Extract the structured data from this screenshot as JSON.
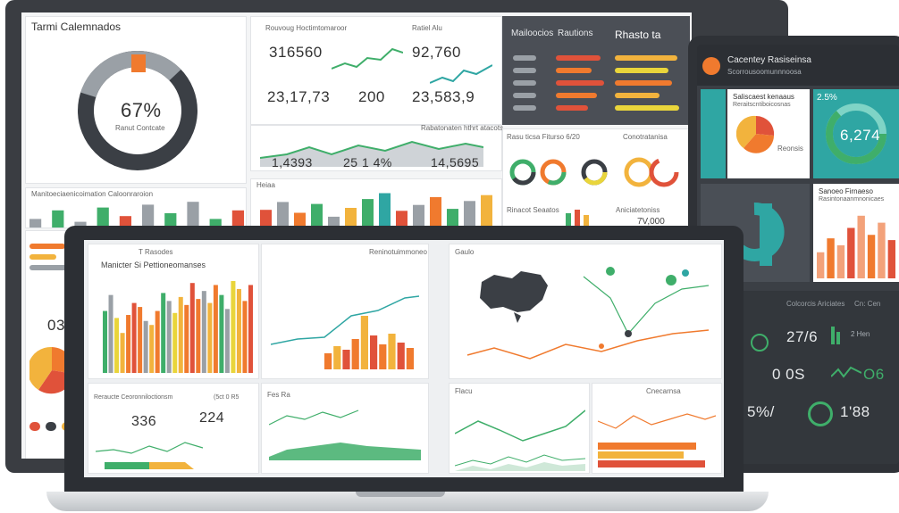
{
  "colors": {
    "orange": "#f07a2e",
    "amber": "#f2b33d",
    "yellow": "#e9d53b",
    "green": "#3fae6a",
    "teal": "#2fa6a3",
    "red": "#e0523a",
    "dark": "#3b3f45",
    "grey": "#9aa0a6"
  },
  "back_monitor": {
    "title": "Tarmi Calemnados",
    "donut_value": "67%",
    "donut_caption": "Ranut Contcate",
    "kpi_header_1": "Rouvoug Hoctimtomaroor",
    "kpi_header_2": "Ratiel Alu",
    "kpi_value_1": "316560",
    "kpi_value_2": "92,760",
    "kpi_value_3": "23,17,73",
    "kpi_value_4": "200",
    "kpi_value_5": "23,583,9",
    "area_chart_title": "Rabatonaten hthrt atacots",
    "stat_1": "1,4393",
    "stat_2": "25 1 4%",
    "stat_3": "14,5695",
    "list_header": "Manitoeciaenicoimation Caloonraroion",
    "dark_panel_title_1": "Mailoocios",
    "dark_panel_title_2": "Rautions",
    "dark_panel_title_3": "Rhasto ta",
    "rings_header_1": "Rasu ticsa Fiturso 6/20",
    "rings_header_2": "Conotratanisa",
    "rings_footer_1": "Rinacot Seaatos",
    "rings_footer_2": "Aniciatetoniss",
    "rings_value": "7V,000",
    "bars_header": "Heiaa",
    "left_value": "03"
  },
  "tablet": {
    "header_title": "Cacentey Rasiseinsa",
    "header_sub": "Scorrousoomunnnoosa",
    "card_1_title": "Saliscaest kenaaus",
    "card_1_sub": "Reraitscntiboicosnas",
    "card_1_value": "Reonsis",
    "gauge_value": "6,274",
    "gauge_label": "2.5%",
    "card_3_title": "Sanoeo Firnaeso",
    "card_3_sub": "Rasintonaanmnonicaes",
    "dark_value_1": "27/6",
    "dark_value_2": "0 0S",
    "dark_value_3": "5%/",
    "dark_value_4": "1'88",
    "dark_value_5": "O6",
    "dark_label_1": "Colcorcis Ariciates",
    "dark_label_2": "Cn: Cen",
    "dark_label_3": "2 Hen"
  },
  "laptop": {
    "bar_chart_title": "Manicter Si Pettioneomanses",
    "bar_chart_caption": "T Rasodes",
    "line_chart_title": "Reninotuimmoneo",
    "map_title": "Gaulo",
    "kpi_header_1": "Reraucte Ceoronniloctionsm",
    "kpi_header_2": "(5ct 0 R5",
    "kpi_value_1": "336",
    "kpi_value_2": "224",
    "area_title": "Fes Ra",
    "line2_title": "Flacu",
    "bars2_title": "Cnecarnsa"
  },
  "chart_data": [
    {
      "type": "bar",
      "title": "Manicter Si Pettioneomanses",
      "series": [
        {
          "values": [
            62,
            78,
            55,
            40,
            58,
            70,
            66,
            52,
            48,
            62,
            80,
            72,
            60,
            76,
            68,
            90,
            74,
            82,
            70,
            88,
            78,
            64,
            92,
            84,
            72,
            88
          ]
        }
      ]
    },
    {
      "type": "bar",
      "series": [
        {
          "values": [
            18,
            26,
            22,
            34,
            60,
            38,
            28,
            40,
            30,
            24
          ]
        }
      ]
    },
    {
      "type": "bar",
      "series": [
        {
          "values": [
            30,
            46,
            38,
            58,
            72,
            50,
            64,
            44
          ]
        }
      ]
    },
    {
      "type": "bar",
      "series": [
        {
          "values": [
            36,
            52,
            30,
            48,
            22,
            40,
            58,
            70,
            34,
            46,
            62,
            38,
            54,
            66
          ]
        }
      ]
    }
  ]
}
